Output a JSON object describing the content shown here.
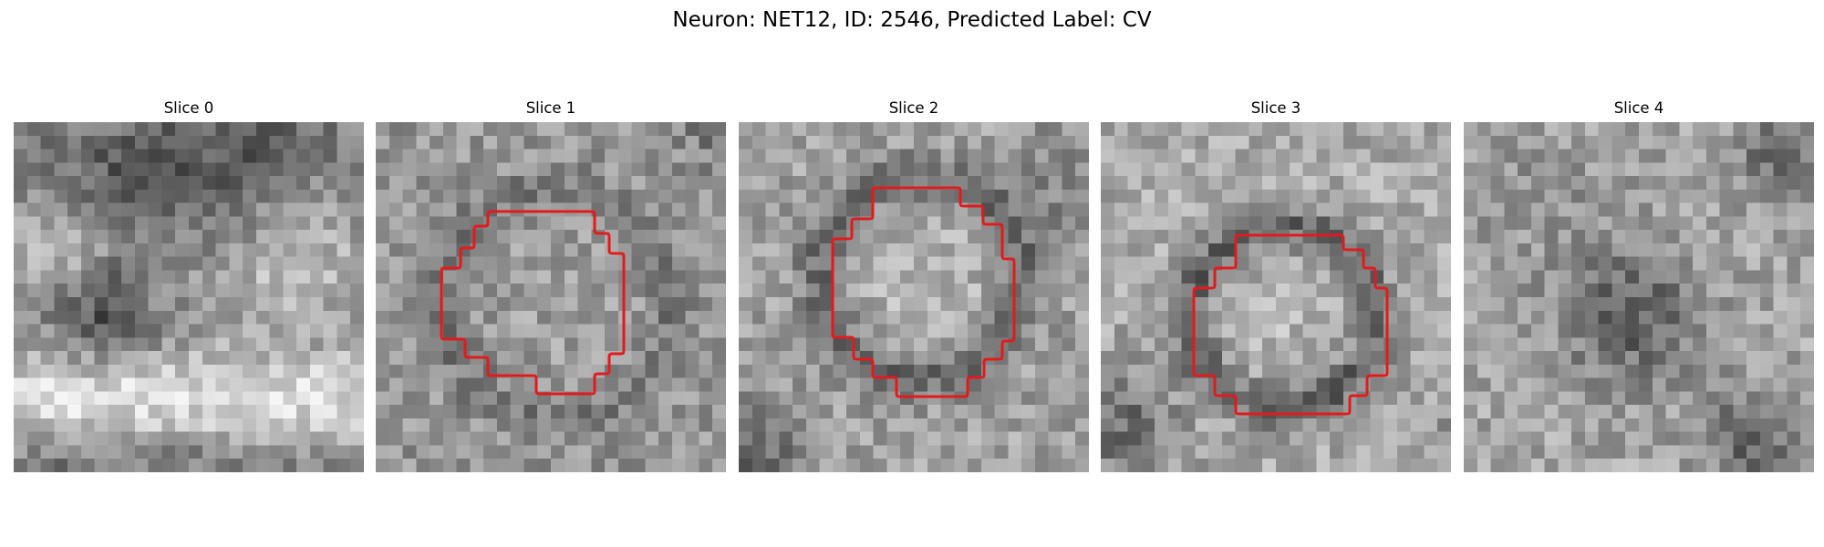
{
  "figure": {
    "title": "Neuron: NET12, ID: 2546, Predicted Label: CV",
    "contour_color": "#e31a1c",
    "colormap": "grayscale"
  },
  "panels": [
    {
      "title": "Slice 0",
      "has_contour": false
    },
    {
      "title": "Slice 1",
      "has_contour": true
    },
    {
      "title": "Slice 2",
      "has_contour": true
    },
    {
      "title": "Slice 3",
      "has_contour": true
    },
    {
      "title": "Slice 4",
      "has_contour": false
    }
  ]
}
